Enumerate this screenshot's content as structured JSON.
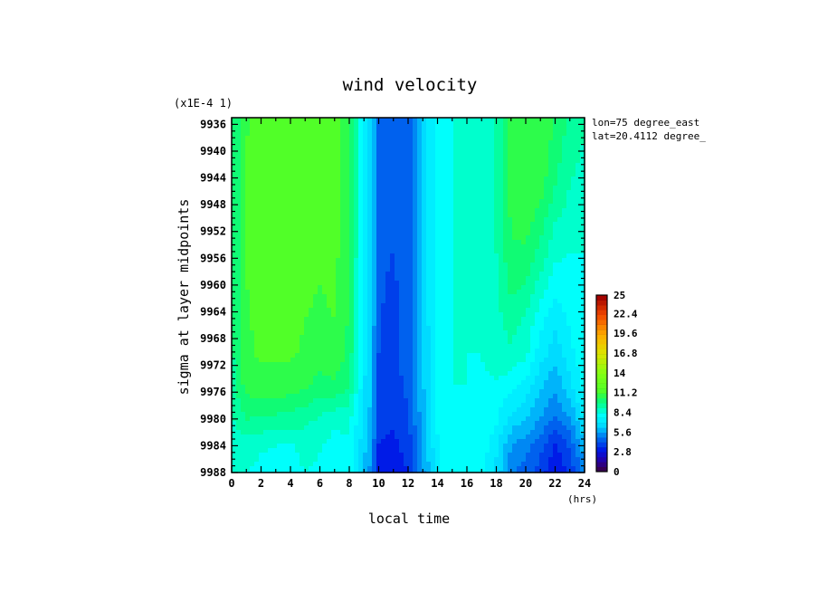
{
  "chart_data": {
    "type": "heatmap",
    "title": "wind velocity",
    "xlabel": "local time",
    "ylabel": "sigma at layer midpoints",
    "x_units": "(hrs)",
    "y_scale_note": "(x1E-4 1)",
    "annotations": [
      "lon=75 degree_east",
      "lat=20.4112 degree_"
    ],
    "xlim": [
      0,
      24
    ],
    "ylim": [
      9988,
      9935
    ],
    "x_ticks": [
      "0",
      "2",
      "4",
      "6",
      "8",
      "10",
      "12",
      "14",
      "16",
      "18",
      "20",
      "22",
      "24"
    ],
    "y_ticks": [
      "9936",
      "9940",
      "9944",
      "9948",
      "9952",
      "9956",
      "9960",
      "9964",
      "9968",
      "9972",
      "9976",
      "9980",
      "9984",
      "9988"
    ],
    "colorbar": {
      "min": 0,
      "max": 25,
      "labels": [
        "25",
        "22.4",
        "19.6",
        "16.8",
        "14",
        "11.2",
        "8.4",
        "5.6",
        "2.8",
        "0"
      ]
    },
    "x": [
      0,
      1,
      2,
      3,
      4,
      5,
      6,
      7,
      8,
      9,
      9.5,
      10,
      11,
      12,
      13,
      14,
      15,
      16,
      17,
      18,
      19,
      20,
      21,
      22,
      23,
      24
    ],
    "y": [
      9935,
      9940,
      9945,
      9950,
      9955,
      9960,
      9965,
      9970,
      9975,
      9980,
      9984,
      9988
    ],
    "z": [
      [
        9.8,
        11.0,
        11.5,
        11.6,
        11.6,
        11.5,
        11.4,
        11.6,
        10.8,
        7.5,
        6.6,
        4.4,
        4.3,
        4.6,
        6.4,
        8.0,
        8.4,
        8.4,
        8.5,
        9.3,
        10.8,
        11.0,
        11.0,
        10.4,
        9.6,
        9.2
      ],
      [
        9.6,
        11.3,
        11.6,
        11.7,
        11.7,
        11.6,
        11.4,
        11.6,
        10.7,
        7.5,
        6.6,
        4.3,
        4.2,
        4.6,
        6.4,
        8.0,
        8.4,
        8.4,
        8.5,
        9.3,
        10.8,
        11.0,
        11.0,
        10.2,
        9.4,
        9.0
      ],
      [
        9.6,
        11.3,
        11.6,
        11.8,
        11.8,
        11.6,
        11.4,
        11.6,
        10.7,
        7.4,
        6.6,
        4.3,
        4.2,
        4.6,
        6.4,
        8.0,
        8.4,
        8.4,
        8.5,
        9.2,
        10.8,
        11.0,
        10.8,
        9.8,
        9.1,
        8.8
      ],
      [
        9.6,
        11.2,
        11.6,
        11.7,
        11.7,
        11.6,
        11.4,
        11.5,
        10.6,
        7.4,
        6.6,
        4.3,
        4.2,
        4.6,
        6.4,
        8.0,
        8.4,
        8.4,
        8.5,
        9.2,
        10.6,
        10.8,
        10.2,
        9.2,
        8.8,
        8.6
      ],
      [
        9.6,
        11.2,
        11.5,
        11.6,
        11.6,
        11.5,
        11.3,
        11.4,
        10.6,
        7.4,
        6.6,
        4.3,
        4.2,
        4.6,
        6.4,
        8.0,
        8.4,
        8.4,
        8.4,
        9.1,
        10.4,
        10.4,
        9.6,
        8.6,
        8.4,
        8.4
      ],
      [
        9.6,
        11.2,
        11.4,
        11.5,
        11.5,
        11.3,
        11.2,
        11.3,
        10.5,
        7.3,
        6.5,
        4.3,
        4.1,
        4.5,
        6.4,
        8.0,
        8.4,
        8.4,
        8.4,
        9.0,
        10.0,
        9.8,
        8.8,
        8.0,
        8.2,
        8.4
      ],
      [
        9.6,
        11.1,
        11.4,
        11.4,
        11.4,
        11.2,
        11.1,
        11.2,
        10.4,
        7.3,
        6.5,
        4.2,
        4.1,
        4.5,
        6.4,
        8.0,
        8.4,
        8.4,
        8.4,
        8.9,
        9.4,
        9.0,
        8.0,
        7.2,
        7.8,
        8.3
      ],
      [
        9.6,
        11.1,
        11.3,
        11.3,
        11.3,
        11.1,
        11.0,
        11.1,
        10.3,
        7.2,
        6.4,
        4.2,
        4.0,
        4.5,
        6.3,
        8.0,
        8.4,
        8.4,
        8.4,
        8.8,
        9.0,
        8.6,
        7.4,
        6.6,
        7.5,
        8.2
      ],
      [
        9.4,
        10.8,
        11.0,
        11.0,
        10.9,
        10.6,
        10.2,
        10.4,
        9.8,
        7.1,
        6.3,
        4.1,
        3.9,
        4.4,
        6.2,
        7.9,
        8.4,
        8.4,
        8.3,
        8.3,
        8.0,
        7.5,
        6.4,
        5.8,
        6.8,
        8.0
      ],
      [
        9.0,
        9.8,
        9.7,
        9.6,
        9.5,
        9.3,
        9.0,
        8.6,
        8.6,
        6.8,
        6.0,
        3.8,
        3.6,
        4.1,
        6.0,
        7.8,
        8.3,
        8.3,
        8.2,
        7.8,
        6.8,
        6.3,
        5.6,
        4.8,
        5.6,
        7.2
      ],
      [
        8.8,
        8.7,
        8.5,
        8.4,
        8.3,
        8.7,
        8.5,
        8.1,
        8.3,
        6.5,
        5.6,
        3.5,
        3.3,
        3.8,
        5.7,
        7.6,
        8.3,
        8.3,
        8.1,
        7.2,
        5.6,
        5.2,
        4.5,
        3.3,
        4.3,
        6.0
      ],
      [
        8.5,
        8.4,
        8.2,
        8.1,
        8.0,
        8.4,
        8.2,
        7.8,
        8.0,
        6.3,
        5.3,
        3.2,
        3.1,
        3.5,
        5.4,
        7.5,
        8.2,
        8.2,
        8.0,
        6.8,
        5.0,
        4.6,
        3.8,
        2.9,
        3.6,
        5.2
      ]
    ]
  }
}
